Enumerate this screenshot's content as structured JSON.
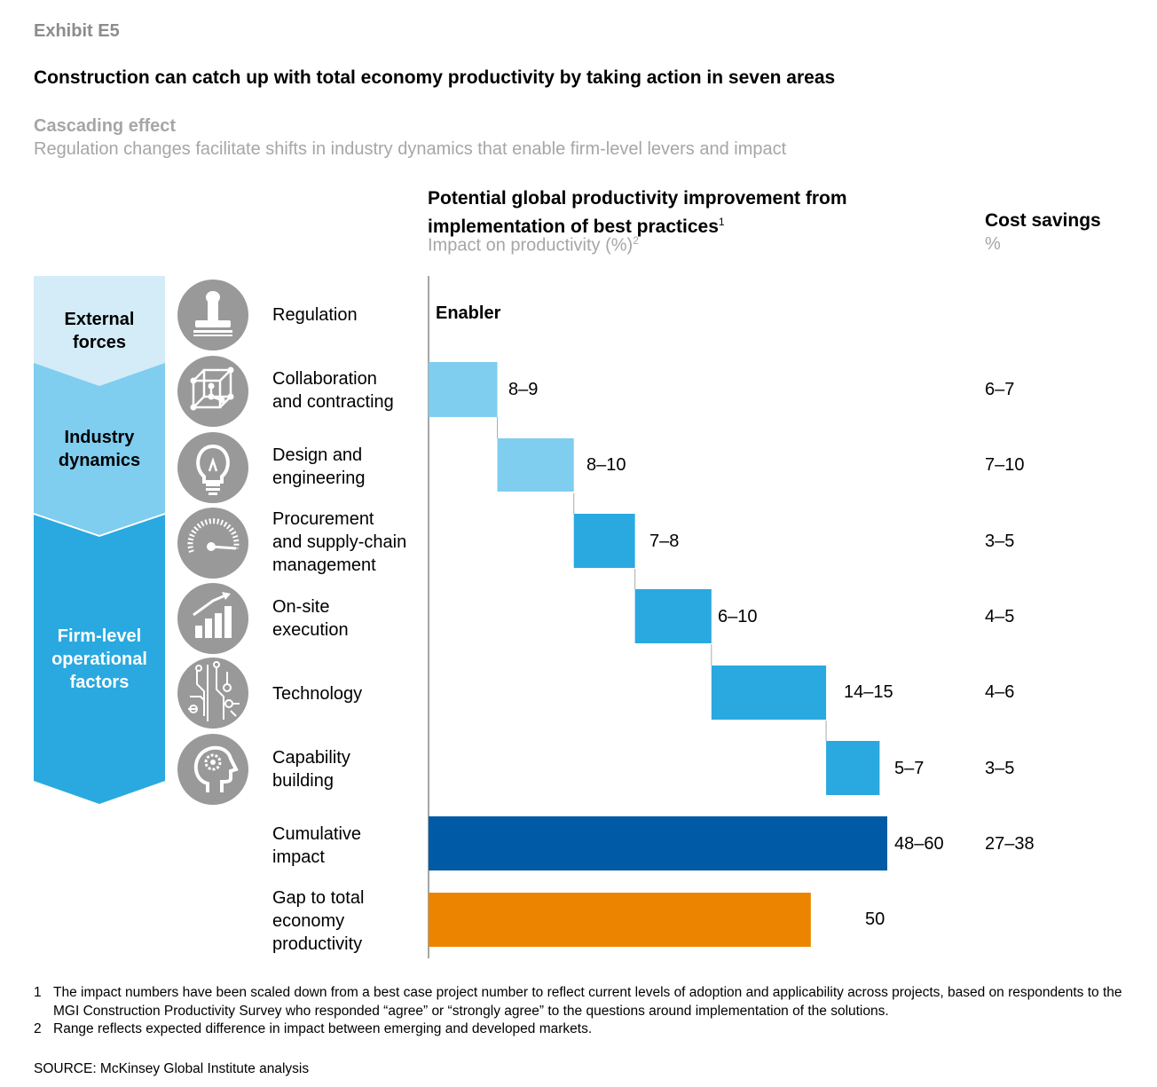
{
  "exhibit": "Exhibit E5",
  "title": "Construction can catch up with total economy productivity by taking action in seven areas",
  "subtitle": {
    "heading": "Cascading effect",
    "text": "Regulation changes facilitate shifts in industry dynamics that enable firm-level levers and impact"
  },
  "chart_header": {
    "line1": "Potential global productivity improvement from",
    "line2": "implementation of best practices",
    "line2_sup": "1",
    "unit": "Impact on productivity (%)",
    "unit_sup": "2"
  },
  "cost_header": {
    "title": "Cost savings",
    "unit": "%"
  },
  "stages": [
    {
      "label_lines": [
        "External",
        "forces"
      ],
      "color": "#d3ecf7"
    },
    {
      "label_lines": [
        "Industry",
        "dynamics"
      ],
      "color": "#7fcdef"
    },
    {
      "label_lines": [
        "Firm-level",
        "operational",
        "factors"
      ],
      "color": "#29a9e0"
    }
  ],
  "icons": [
    "stamp-icon",
    "cube-network-icon",
    "lightbulb-icon",
    "gauge-icon",
    "growth-chart-icon",
    "circuit-icon",
    "head-gear-icon"
  ],
  "enabler_label": "Enabler",
  "colors": {
    "light_blue": "#7fcdef",
    "mid_blue": "#29a9e0",
    "dark_blue": "#005aa5",
    "orange": "#ec8400",
    "icon_gray": "#999999"
  },
  "chart_data": {
    "type": "bar",
    "subtype": "waterfall-range",
    "categories": [
      "Regulation",
      "Collaboration and contracting",
      "Design and engineering",
      "Procurement and supply-chain management",
      "On-site execution",
      "Technology",
      "Capability building",
      "Cumulative impact",
      "Gap to total economy productivity"
    ],
    "category_lines": [
      [
        "Regulation"
      ],
      [
        "Collaboration",
        "and contracting"
      ],
      [
        "Design and",
        "engineering"
      ],
      [
        "Procurement",
        "and supply-chain",
        "management"
      ],
      [
        "On-site",
        "execution"
      ],
      [
        "Technology"
      ],
      [
        "Capability",
        "building"
      ],
      [
        "Cumulative",
        "impact"
      ],
      [
        "Gap to total",
        "economy",
        "productivity"
      ]
    ],
    "productivity_labels": [
      "",
      "8–9",
      "8–10",
      "7–8",
      "6–10",
      "14–15",
      "5–7",
      "48–60",
      "50"
    ],
    "productivity_ranges": [
      null,
      [
        8,
        9
      ],
      [
        8,
        10
      ],
      [
        7,
        8
      ],
      [
        6,
        10
      ],
      [
        14,
        15
      ],
      [
        5,
        7
      ],
      [
        48,
        60
      ],
      [
        50,
        50
      ]
    ],
    "cost_savings_labels": [
      "",
      "6–7",
      "7–10",
      "3–5",
      "4–5",
      "4–6",
      "3–5",
      "27–38",
      ""
    ],
    "bar_colors": [
      "none",
      "#7fcdef",
      "#7fcdef",
      "#29a9e0",
      "#29a9e0",
      "#29a9e0",
      "#29a9e0",
      "#005aa5",
      "#ec8400"
    ]
  },
  "footnotes": [
    {
      "num": "1",
      "text": "The impact numbers have been scaled down from a best case project number to reflect current levels of adoption and applicability across projects, based on respondents to the MGI Construction Productivity Survey who responded “agree” or “strongly agree” to the questions around implementation of the solutions."
    },
    {
      "num": "2",
      "text": "Range reflects expected difference in impact between emerging and developed markets."
    }
  ],
  "source": "SOURCE:  McKinsey Global Institute analysis"
}
